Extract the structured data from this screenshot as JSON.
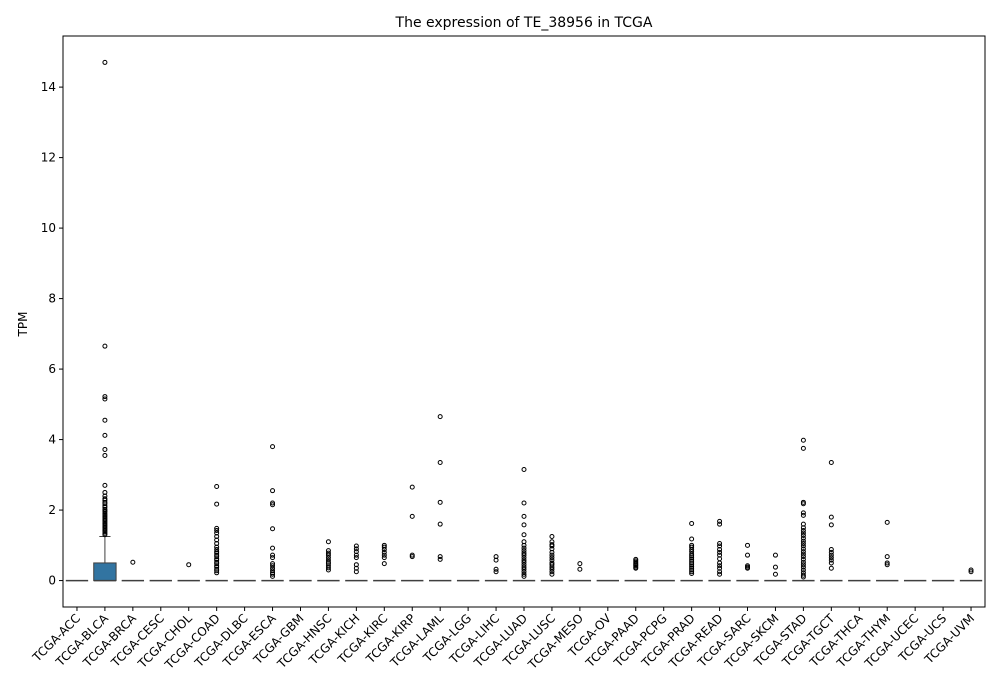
{
  "chart_data": {
    "type": "box",
    "title": "The expression of TE_38956 in TCGA",
    "xlabel": "",
    "ylabel": "TPM",
    "ylim": [
      -0.75,
      15.45
    ],
    "yticks": [
      0,
      2,
      4,
      6,
      8,
      10,
      12,
      14
    ],
    "box_color": "#3274a1",
    "grid": false,
    "categories": [
      "TCGA-ACC",
      "TCGA-BLCA",
      "TCGA-BRCA",
      "TCGA-CESC",
      "TCGA-CHOL",
      "TCGA-COAD",
      "TCGA-DLBC",
      "TCGA-ESCA",
      "TCGA-GBM",
      "TCGA-HNSC",
      "TCGA-KICH",
      "TCGA-KIRC",
      "TCGA-KIRP",
      "TCGA-LAML",
      "TCGA-LGG",
      "TCGA-LIHC",
      "TCGA-LUAD",
      "TCGA-LUSC",
      "TCGA-MESO",
      "TCGA-OV",
      "TCGA-PAAD",
      "TCGA-PCPG",
      "TCGA-PRAD",
      "TCGA-READ",
      "TCGA-SARC",
      "TCGA-SKCM",
      "TCGA-STAD",
      "TCGA-TGCT",
      "TCGA-THCA",
      "TCGA-THYM",
      "TCGA-UCEC",
      "TCGA-UCS",
      "TCGA-UVM"
    ],
    "boxes": [
      {
        "q1": 0,
        "median": 0,
        "q3": 0,
        "whisker_low": 0,
        "whisker_high": 0,
        "outliers": []
      },
      {
        "q1": 0,
        "median": 0,
        "q3": 0.5,
        "whisker_low": 0,
        "whisker_high": 1.25,
        "outliers": [
          14.7,
          6.65,
          5.22,
          5.15,
          4.55,
          4.12,
          3.72,
          3.55,
          2.7,
          2.5,
          2.4,
          2.32,
          2.28,
          2.22,
          2.18,
          2.12,
          2.08,
          2.02,
          1.98,
          1.95,
          1.9,
          1.86,
          1.82,
          1.78,
          1.74,
          1.7,
          1.66,
          1.62,
          1.58,
          1.54,
          1.5,
          1.46,
          1.42,
          1.38,
          1.34,
          1.3
        ]
      },
      {
        "q1": 0,
        "median": 0,
        "q3": 0,
        "whisker_low": 0,
        "whisker_high": 0,
        "outliers": [
          0.52
        ]
      },
      {
        "q1": 0,
        "median": 0,
        "q3": 0,
        "whisker_low": 0,
        "whisker_high": 0,
        "outliers": []
      },
      {
        "q1": 0,
        "median": 0,
        "q3": 0,
        "whisker_low": 0,
        "whisker_high": 0,
        "outliers": [
          0.45
        ]
      },
      {
        "q1": 0,
        "median": 0,
        "q3": 0,
        "whisker_low": 0,
        "whisker_high": 0,
        "outliers": [
          2.67,
          2.17,
          1.48,
          1.42,
          1.35,
          1.25,
          1.15,
          1.05,
          0.95,
          0.88,
          0.82,
          0.78,
          0.72,
          0.68,
          0.62,
          0.58,
          0.52,
          0.48,
          0.42,
          0.38,
          0.32,
          0.28,
          0.22
        ]
      },
      {
        "q1": 0,
        "median": 0,
        "q3": 0,
        "whisker_low": 0,
        "whisker_high": 0,
        "outliers": []
      },
      {
        "q1": 0,
        "median": 0,
        "q3": 0,
        "whisker_low": 0,
        "whisker_high": 0,
        "outliers": [
          3.8,
          2.55,
          2.2,
          2.15,
          1.47,
          0.92,
          0.72,
          0.65,
          0.48,
          0.42,
          0.35,
          0.28,
          0.22,
          0.18,
          0.12
        ]
      },
      {
        "q1": 0,
        "median": 0,
        "q3": 0,
        "whisker_low": 0,
        "whisker_high": 0,
        "outliers": []
      },
      {
        "q1": 0,
        "median": 0,
        "q3": 0,
        "whisker_low": 0,
        "whisker_high": 0,
        "outliers": [
          1.1,
          0.85,
          0.78,
          0.72,
          0.65,
          0.58,
          0.52,
          0.48,
          0.42,
          0.36,
          0.3
        ]
      },
      {
        "q1": 0,
        "median": 0,
        "q3": 0,
        "whisker_low": 0,
        "whisker_high": 0,
        "outliers": [
          0.98,
          0.9,
          0.82,
          0.72,
          0.65,
          0.45,
          0.35,
          0.25
        ]
      },
      {
        "q1": 0,
        "median": 0,
        "q3": 0,
        "whisker_low": 0,
        "whisker_high": 0,
        "outliers": [
          1.0,
          0.95,
          0.88,
          0.8,
          0.72,
          0.65,
          0.48
        ]
      },
      {
        "q1": 0,
        "median": 0,
        "q3": 0,
        "whisker_low": 0,
        "whisker_high": 0,
        "outliers": [
          2.65,
          1.82,
          0.72,
          0.68
        ]
      },
      {
        "q1": 0,
        "median": 0,
        "q3": 0,
        "whisker_low": 0,
        "whisker_high": 0,
        "outliers": [
          4.65,
          3.35,
          2.22,
          1.6,
          0.68,
          0.6
        ]
      },
      {
        "q1": 0,
        "median": 0,
        "q3": 0,
        "whisker_low": 0,
        "whisker_high": 0,
        "outliers": []
      },
      {
        "q1": 0,
        "median": 0,
        "q3": 0,
        "whisker_low": 0,
        "whisker_high": 0,
        "outliers": [
          0.68,
          0.58,
          0.32,
          0.25
        ]
      },
      {
        "q1": 0,
        "median": 0,
        "q3": 0,
        "whisker_low": 0,
        "whisker_high": 0,
        "outliers": [
          3.15,
          2.2,
          1.82,
          1.58,
          1.3,
          1.1,
          1.0,
          0.92,
          0.85,
          0.78,
          0.72,
          0.65,
          0.58,
          0.52,
          0.45,
          0.38,
          0.32,
          0.25,
          0.18,
          0.12
        ]
      },
      {
        "q1": 0,
        "median": 0,
        "q3": 0,
        "whisker_low": 0,
        "whisker_high": 0,
        "outliers": [
          1.25,
          1.1,
          1.02,
          0.98,
          0.9,
          0.8,
          0.72,
          0.65,
          0.58,
          0.5,
          0.45,
          0.38,
          0.32,
          0.25,
          0.18
        ]
      },
      {
        "q1": 0,
        "median": 0,
        "q3": 0,
        "whisker_low": 0,
        "whisker_high": 0,
        "outliers": [
          0.48,
          0.32
        ]
      },
      {
        "q1": 0,
        "median": 0,
        "q3": 0,
        "whisker_low": 0,
        "whisker_high": 0,
        "outliers": []
      },
      {
        "q1": 0,
        "median": 0,
        "q3": 0,
        "whisker_low": 0,
        "whisker_high": 0,
        "outliers": [
          0.6,
          0.56,
          0.52,
          0.48,
          0.45,
          0.42,
          0.38,
          0.35
        ]
      },
      {
        "q1": 0,
        "median": 0,
        "q3": 0,
        "whisker_low": 0,
        "whisker_high": 0,
        "outliers": []
      },
      {
        "q1": 0,
        "median": 0,
        "q3": 0,
        "whisker_low": 0,
        "whisker_high": 0,
        "outliers": [
          1.62,
          1.18,
          1.0,
          0.95,
          0.88,
          0.82,
          0.75,
          0.7,
          0.65,
          0.6,
          0.55,
          0.5,
          0.45,
          0.4,
          0.35,
          0.3,
          0.25,
          0.2
        ]
      },
      {
        "q1": 0,
        "median": 0,
        "q3": 0,
        "whisker_low": 0,
        "whisker_high": 0,
        "outliers": [
          1.68,
          1.6,
          1.05,
          0.98,
          0.88,
          0.8,
          0.72,
          0.62,
          0.5,
          0.42,
          0.35,
          0.25,
          0.18
        ]
      },
      {
        "q1": 0,
        "median": 0,
        "q3": 0,
        "whisker_low": 0,
        "whisker_high": 0,
        "outliers": [
          1.0,
          0.72,
          0.42,
          0.38,
          0.35
        ]
      },
      {
        "q1": 0,
        "median": 0,
        "q3": 0,
        "whisker_low": 0,
        "whisker_high": 0,
        "outliers": [
          0.72,
          0.38,
          0.18
        ]
      },
      {
        "q1": 0,
        "median": 0,
        "q3": 0,
        "whisker_low": 0,
        "whisker_high": 0,
        "outliers": [
          3.98,
          3.75,
          2.22,
          2.18,
          1.92,
          1.85,
          1.6,
          1.5,
          1.42,
          1.35,
          1.28,
          1.2,
          1.12,
          1.05,
          0.98,
          0.9,
          0.82,
          0.75,
          0.68,
          0.6,
          0.52,
          0.45,
          0.38,
          0.3,
          0.22,
          0.15,
          0.1
        ]
      },
      {
        "q1": 0,
        "median": 0,
        "q3": 0,
        "whisker_low": 0,
        "whisker_high": 0,
        "outliers": [
          3.35,
          1.8,
          1.58,
          0.88,
          0.8,
          0.72,
          0.65,
          0.58,
          0.5,
          0.35
        ]
      },
      {
        "q1": 0,
        "median": 0,
        "q3": 0,
        "whisker_low": 0,
        "whisker_high": 0,
        "outliers": []
      },
      {
        "q1": 0,
        "median": 0,
        "q3": 0,
        "whisker_low": 0,
        "whisker_high": 0,
        "outliers": [
          1.65,
          0.68,
          0.5,
          0.45
        ]
      },
      {
        "q1": 0,
        "median": 0,
        "q3": 0,
        "whisker_low": 0,
        "whisker_high": 0,
        "outliers": []
      },
      {
        "q1": 0,
        "median": 0,
        "q3": 0,
        "whisker_low": 0,
        "whisker_high": 0,
        "outliers": []
      },
      {
        "q1": 0,
        "median": 0,
        "q3": 0,
        "whisker_low": 0,
        "whisker_high": 0,
        "outliers": [
          0.3,
          0.25
        ]
      }
    ]
  }
}
